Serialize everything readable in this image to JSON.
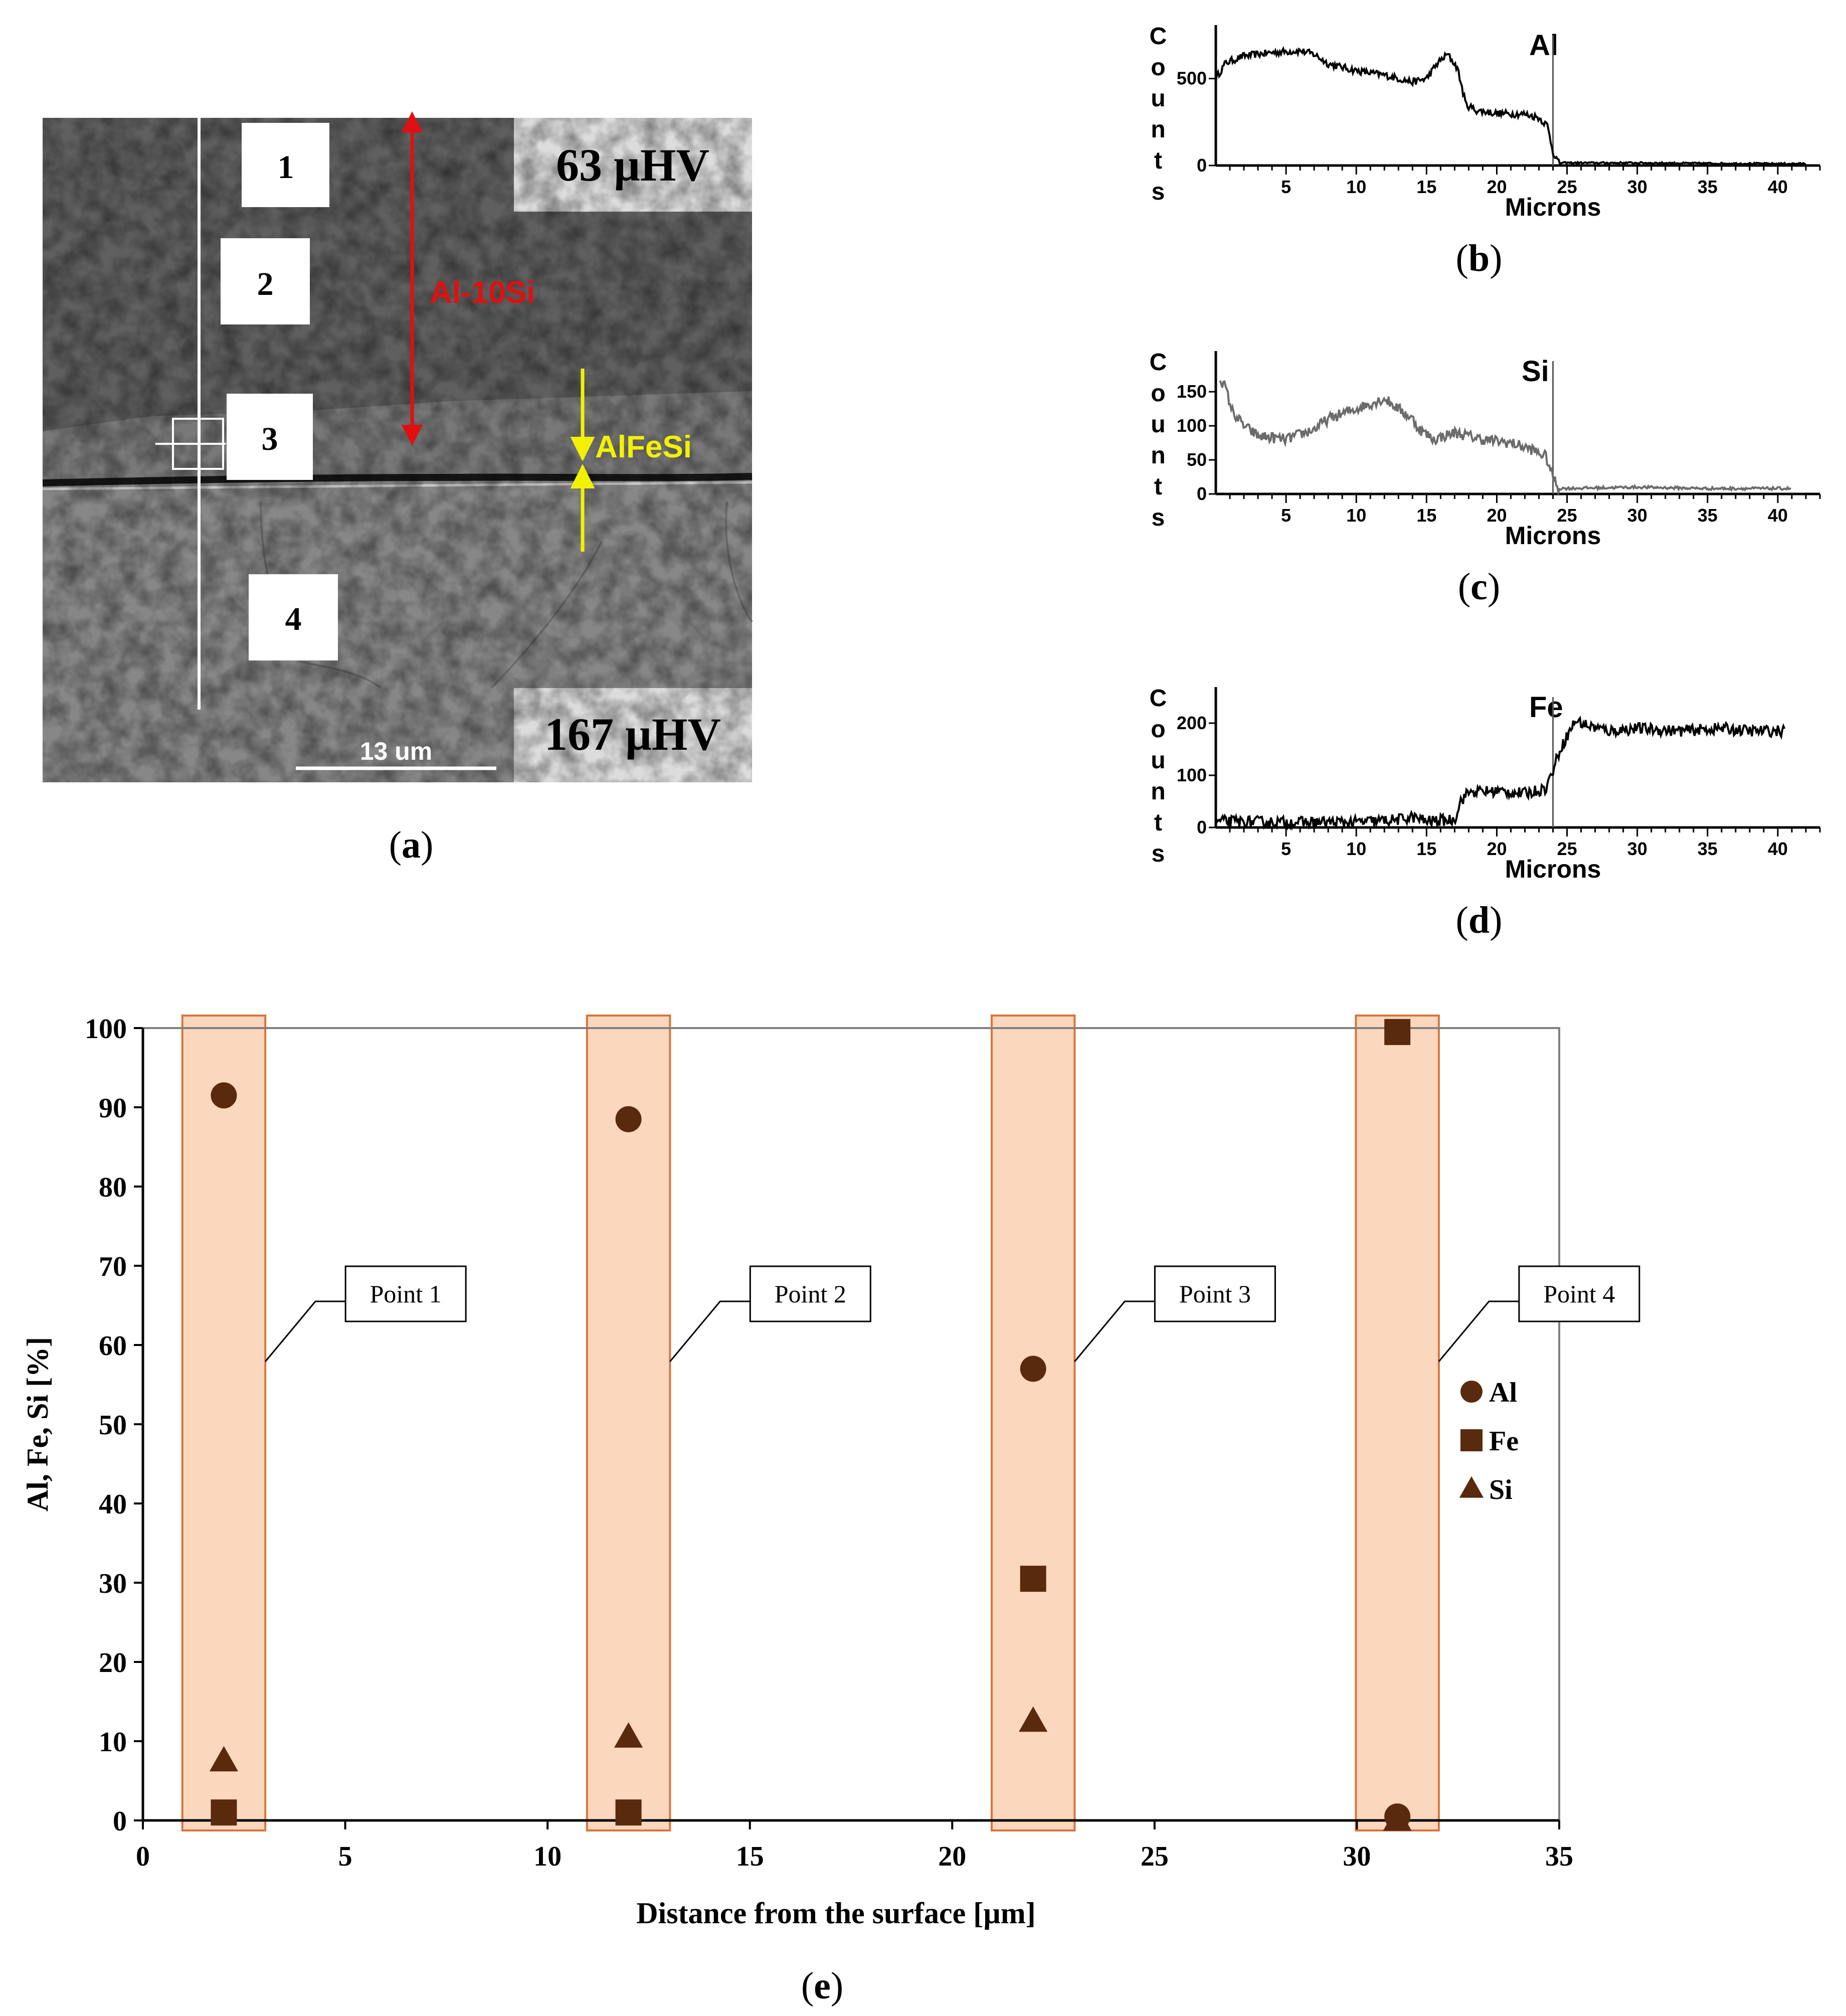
{
  "colors": {
    "point_color": "#5a2a0e",
    "band_fill": "#fbd7bd",
    "band_stroke": "#d9753b",
    "al10si_arrow": "#e01010",
    "alfesi_arrow": "#f2f200",
    "profile_dark": "#000000",
    "profile_gray": "#6b6b6b"
  },
  "panel_a": {
    "caption_letter": "a",
    "markers": [
      "1",
      "2",
      "3",
      "4"
    ],
    "hardness_top": "63 µHV",
    "hardness_bottom": "167 µHV",
    "label_al10si": "Al-10Si",
    "label_alfesi": "AlFeSi",
    "scale_bar_label": "13 um"
  },
  "chart_data": [
    {
      "id": "b",
      "type": "line",
      "caption_letter": "b",
      "element": "Al",
      "ylabel": [
        "C",
        "o",
        "u",
        "n",
        "t",
        "s"
      ],
      "xlabel": "Microns",
      "x_ticks": [
        5,
        10,
        15,
        20,
        25,
        30,
        35,
        40
      ],
      "y_ticks": [
        0,
        500
      ],
      "xlim": [
        0,
        43
      ],
      "ylim": [
        0,
        750
      ],
      "interface_x": 24,
      "noise": 40,
      "series": [
        {
          "x": [
            0,
            0.7,
            2,
            4,
            6,
            7,
            8,
            10,
            12,
            14,
            15,
            15.8,
            16.5,
            17.2,
            17.8,
            18.6,
            20,
            22,
            23,
            23.6,
            24,
            24.4,
            30,
            35,
            40,
            42
          ],
          "y": [
            500,
            590,
            630,
            650,
            660,
            640,
            585,
            545,
            520,
            480,
            500,
            590,
            640,
            560,
            350,
            315,
            300,
            295,
            275,
            230,
            80,
            15,
            15,
            12,
            10,
            10
          ]
        }
      ]
    },
    {
      "id": "c",
      "type": "line",
      "caption_letter": "c",
      "element": "Si",
      "ylabel": [
        "C",
        "o",
        "u",
        "n",
        "t",
        "s"
      ],
      "xlabel": "Microns",
      "x_ticks": [
        5,
        10,
        15,
        20,
        25,
        30,
        35,
        40
      ],
      "y_ticks": [
        0,
        50,
        100,
        150
      ],
      "xlim": [
        0,
        43
      ],
      "ylim": [
        0,
        195
      ],
      "interface_x": 24,
      "noise": 16,
      "series": [
        {
          "x": [
            0.3,
            0.7,
            1.2,
            2,
            3,
            5,
            7,
            8,
            10,
            12,
            13,
            14,
            14.5,
            15.5,
            17,
            19,
            21,
            22.5,
            23.5,
            24,
            24.4,
            30,
            35,
            40,
            41
          ],
          "y": [
            170,
            155,
            120,
            100,
            85,
            80,
            95,
            110,
            125,
            140,
            125,
            110,
            95,
            80,
            90,
            80,
            75,
            65,
            55,
            25,
            8,
            10,
            8,
            8,
            8
          ]
        }
      ]
    },
    {
      "id": "d",
      "type": "line",
      "caption_letter": "d",
      "element": "Fe",
      "ylabel": [
        "C",
        "o",
        "u",
        "n",
        "t",
        "s"
      ],
      "xlabel": "Microns",
      "x_ticks": [
        5,
        10,
        15,
        20,
        25,
        30,
        35,
        40
      ],
      "y_ticks": [
        0,
        100,
        200
      ],
      "xlim": [
        0,
        43
      ],
      "ylim": [
        0,
        250
      ],
      "interface_x": 24,
      "noise": 22,
      "series": [
        {
          "x": [
            0,
            5,
            10,
            13,
            14,
            15,
            17,
            17.4,
            18,
            20,
            22,
            23.5,
            24,
            24.5,
            25,
            25.6,
            26.5,
            28,
            30,
            33,
            36,
            38,
            40.5
          ],
          "y": [
            12,
            10,
            10,
            15,
            20,
            12,
            15,
            50,
            68,
            70,
            65,
            75,
            110,
            150,
            175,
            205,
            195,
            185,
            190,
            185,
            190,
            185,
            185
          ]
        }
      ]
    },
    {
      "id": "e",
      "type": "scatter",
      "caption_letter": "e",
      "xlabel": "Distance from the surface [µm]",
      "ylabel": "Al, Fe, Si [%]",
      "xlim": [
        0,
        35
      ],
      "ylim": [
        0,
        100
      ],
      "x_ticks": [
        0,
        5,
        10,
        15,
        20,
        25,
        30,
        35
      ],
      "y_ticks": [
        0,
        10,
        20,
        30,
        40,
        50,
        60,
        70,
        80,
        90,
        100
      ],
      "legend_position": "right",
      "x": [
        2,
        12,
        22,
        31
      ],
      "point_labels": [
        "Point 1",
        "Point 2",
        "Point 3",
        "Point 4"
      ],
      "series": [
        {
          "name": "Al",
          "marker": "circle",
          "values": [
            91.5,
            88.5,
            57,
            0.5
          ]
        },
        {
          "name": "Fe",
          "marker": "square",
          "values": [
            1,
            1,
            30.5,
            99.5
          ]
        },
        {
          "name": "Si",
          "marker": "triangle",
          "values": [
            7.5,
            10.5,
            12.5,
            0
          ]
        }
      ]
    }
  ]
}
